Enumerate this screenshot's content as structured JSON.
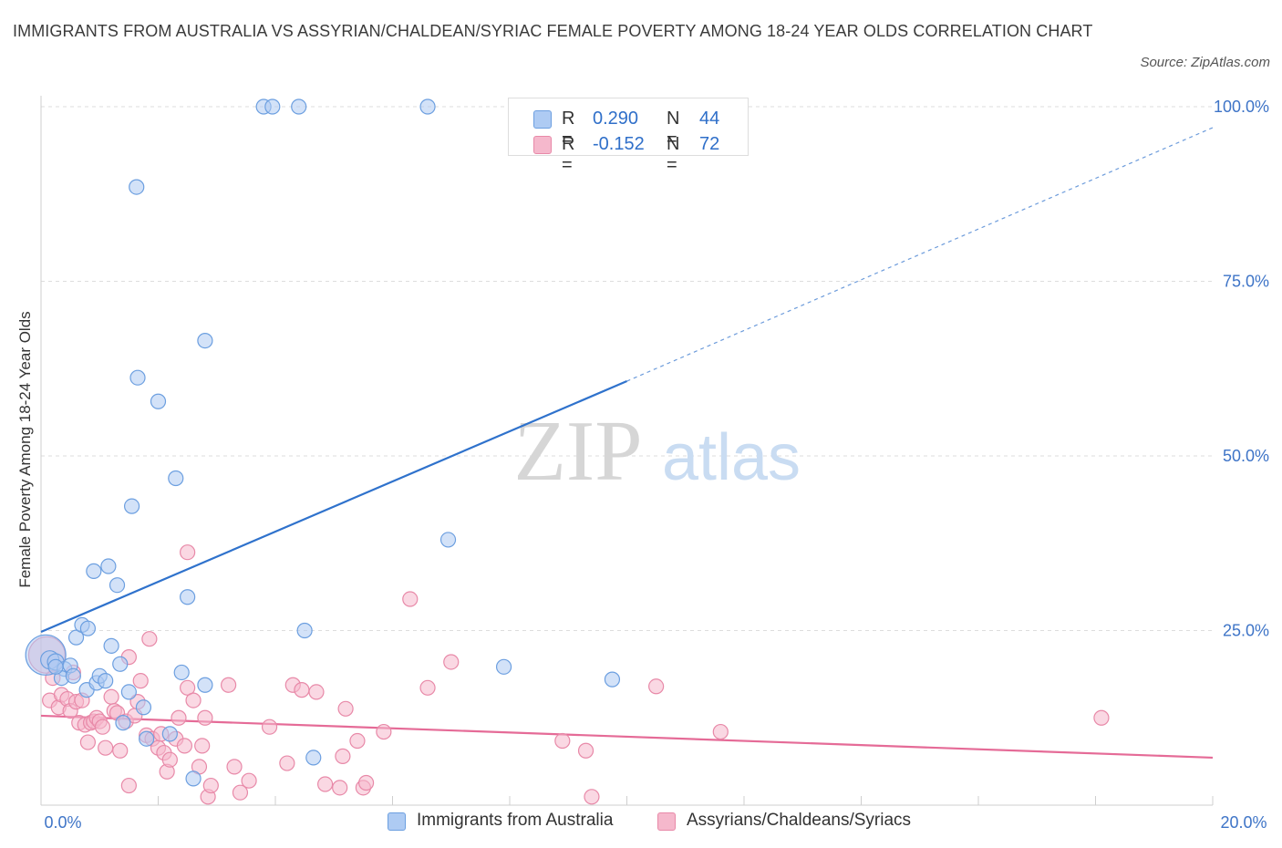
{
  "title": "IMMIGRANTS FROM AUSTRALIA VS ASSYRIAN/CHALDEAN/SYRIAC FEMALE POVERTY AMONG 18-24 YEAR OLDS CORRELATION CHART",
  "source": "Source: ZipAtlas.com",
  "watermark": {
    "zip": "ZIP",
    "atlas": "atlas"
  },
  "colors": {
    "blue_fill": "#aecbf3",
    "blue_stroke": "#6c9fe0",
    "blue_line": "#2f72cc",
    "pink_fill": "#f5b8cc",
    "pink_stroke": "#e889a8",
    "pink_line": "#e56b97",
    "tick_text": "#3e74c7",
    "grid": "#dddddd"
  },
  "stats": {
    "r_label": "R =",
    "n_label": "N =",
    "rows": [
      {
        "series": "Immigrants from Australia",
        "r": "0.290",
        "n": "44"
      },
      {
        "series": "Assyrians/Chaldeans/Syriacs",
        "r": "-0.152",
        "n": "72"
      }
    ]
  },
  "legend": {
    "items": [
      "Immigrants from Australia",
      "Assyrians/Chaldeans/Syriacs"
    ]
  },
  "chart_data": {
    "type": "scatter",
    "title": "IMMIGRANTS FROM AUSTRALIA VS ASSYRIAN/CHALDEAN/SYRIAC FEMALE POVERTY AMONG 18-24 YEAR OLDS CORRELATION CHART",
    "xlabel": "",
    "ylabel": "Female Poverty Among 18-24 Year Olds",
    "xlim": [
      0,
      20
    ],
    "ylim": [
      0,
      100
    ],
    "x_ticks": [
      "0.0%",
      "20.0%"
    ],
    "y_ticks": [
      {
        "value": 25,
        "label": "25.0%"
      },
      {
        "value": 50,
        "label": "50.0%"
      },
      {
        "value": 75,
        "label": "75.0%"
      },
      {
        "value": 100,
        "label": "100.0%"
      }
    ],
    "grid": true,
    "legend_position": "bottom",
    "series": [
      {
        "name": "Immigrants from Australia",
        "r": 0.29,
        "n": 44,
        "trend": {
          "x0": 0,
          "y0": 24.8,
          "x1": 10,
          "y1": 60.7,
          "dashed_to_x": 20,
          "dashed_to_y": 97
        },
        "points": [
          {
            "x": 0.08,
            "y": 21.5,
            "s": 22
          },
          {
            "x": 0.15,
            "y": 20.8,
            "s": 10
          },
          {
            "x": 0.25,
            "y": 20.5,
            "s": 9
          },
          {
            "x": 0.4,
            "y": 19.5,
            "s": 8
          },
          {
            "x": 0.35,
            "y": 18.2,
            "s": 8
          },
          {
            "x": 0.5,
            "y": 20.0,
            "s": 8
          },
          {
            "x": 0.55,
            "y": 18.5,
            "s": 8
          },
          {
            "x": 0.6,
            "y": 24.0,
            "s": 8
          },
          {
            "x": 0.7,
            "y": 25.8,
            "s": 8
          },
          {
            "x": 0.78,
            "y": 16.5,
            "s": 8
          },
          {
            "x": 0.8,
            "y": 25.3,
            "s": 8
          },
          {
            "x": 0.9,
            "y": 33.5,
            "s": 8
          },
          {
            "x": 0.95,
            "y": 17.5,
            "s": 8
          },
          {
            "x": 1.0,
            "y": 18.5,
            "s": 8
          },
          {
            "x": 1.1,
            "y": 17.8,
            "s": 8
          },
          {
            "x": 1.15,
            "y": 34.2,
            "s": 8
          },
          {
            "x": 1.2,
            "y": 22.8,
            "s": 8
          },
          {
            "x": 1.3,
            "y": 31.5,
            "s": 8
          },
          {
            "x": 1.35,
            "y": 20.2,
            "s": 8
          },
          {
            "x": 1.4,
            "y": 11.8,
            "s": 8
          },
          {
            "x": 1.5,
            "y": 16.2,
            "s": 8
          },
          {
            "x": 1.55,
            "y": 42.8,
            "s": 8
          },
          {
            "x": 1.65,
            "y": 61.2,
            "s": 8
          },
          {
            "x": 1.63,
            "y": 88.5,
            "s": 8
          },
          {
            "x": 1.75,
            "y": 14.0,
            "s": 8
          },
          {
            "x": 1.8,
            "y": 9.5,
            "s": 8
          },
          {
            "x": 2.0,
            "y": 57.8,
            "s": 8
          },
          {
            "x": 2.2,
            "y": 10.2,
            "s": 8
          },
          {
            "x": 2.3,
            "y": 46.8,
            "s": 8
          },
          {
            "x": 2.4,
            "y": 19.0,
            "s": 8
          },
          {
            "x": 2.5,
            "y": 29.8,
            "s": 8
          },
          {
            "x": 2.6,
            "y": 3.8,
            "s": 8
          },
          {
            "x": 2.8,
            "y": 17.2,
            "s": 8
          },
          {
            "x": 2.8,
            "y": 66.5,
            "s": 8
          },
          {
            "x": 3.8,
            "y": 100.0,
            "s": 8
          },
          {
            "x": 3.95,
            "y": 100.0,
            "s": 8
          },
          {
            "x": 4.4,
            "y": 100.0,
            "s": 8
          },
          {
            "x": 4.5,
            "y": 25.0,
            "s": 8
          },
          {
            "x": 4.65,
            "y": 6.8,
            "s": 8
          },
          {
            "x": 6.6,
            "y": 100.0,
            "s": 8
          },
          {
            "x": 6.95,
            "y": 38.0,
            "s": 8
          },
          {
            "x": 7.9,
            "y": 19.8,
            "s": 8
          },
          {
            "x": 9.75,
            "y": 18.0,
            "s": 8
          },
          {
            "x": 0.25,
            "y": 19.8,
            "s": 8
          }
        ]
      },
      {
        "name": "Assyrians/Chaldeans/Syriacs",
        "r": -0.152,
        "n": 72,
        "trend": {
          "x0": 0,
          "y0": 12.8,
          "x1": 20,
          "y1": 6.8
        },
        "points": [
          {
            "x": 0.1,
            "y": 21.5,
            "s": 20
          },
          {
            "x": 0.15,
            "y": 15.0,
            "s": 8
          },
          {
            "x": 0.2,
            "y": 18.2,
            "s": 8
          },
          {
            "x": 0.3,
            "y": 14.0,
            "s": 8
          },
          {
            "x": 0.35,
            "y": 15.8,
            "s": 8
          },
          {
            "x": 0.45,
            "y": 15.2,
            "s": 8
          },
          {
            "x": 0.5,
            "y": 13.5,
            "s": 8
          },
          {
            "x": 0.55,
            "y": 19.0,
            "s": 8
          },
          {
            "x": 0.6,
            "y": 14.8,
            "s": 8
          },
          {
            "x": 0.65,
            "y": 11.8,
            "s": 8
          },
          {
            "x": 0.7,
            "y": 15.0,
            "s": 8
          },
          {
            "x": 0.75,
            "y": 11.5,
            "s": 8
          },
          {
            "x": 0.8,
            "y": 9.0,
            "s": 8
          },
          {
            "x": 0.85,
            "y": 11.8,
            "s": 8
          },
          {
            "x": 0.9,
            "y": 12.0,
            "s": 8
          },
          {
            "x": 0.95,
            "y": 12.5,
            "s": 8
          },
          {
            "x": 1.0,
            "y": 12.0,
            "s": 8
          },
          {
            "x": 1.05,
            "y": 11.2,
            "s": 8
          },
          {
            "x": 1.1,
            "y": 8.2,
            "s": 8
          },
          {
            "x": 1.2,
            "y": 15.5,
            "s": 8
          },
          {
            "x": 1.25,
            "y": 13.5,
            "s": 8
          },
          {
            "x": 1.3,
            "y": 13.2,
            "s": 8
          },
          {
            "x": 1.35,
            "y": 7.8,
            "s": 8
          },
          {
            "x": 1.45,
            "y": 12.0,
            "s": 8
          },
          {
            "x": 1.5,
            "y": 21.2,
            "s": 8
          },
          {
            "x": 1.5,
            "y": 2.8,
            "s": 8
          },
          {
            "x": 1.6,
            "y": 12.8,
            "s": 8
          },
          {
            "x": 1.65,
            "y": 14.8,
            "s": 8
          },
          {
            "x": 1.7,
            "y": 17.8,
            "s": 8
          },
          {
            "x": 1.8,
            "y": 10.0,
            "s": 8
          },
          {
            "x": 1.85,
            "y": 23.8,
            "s": 8
          },
          {
            "x": 1.9,
            "y": 9.5,
            "s": 8
          },
          {
            "x": 2.0,
            "y": 8.2,
            "s": 8
          },
          {
            "x": 2.05,
            "y": 10.2,
            "s": 8
          },
          {
            "x": 2.1,
            "y": 7.5,
            "s": 8
          },
          {
            "x": 2.15,
            "y": 4.8,
            "s": 8
          },
          {
            "x": 2.2,
            "y": 6.5,
            "s": 8
          },
          {
            "x": 2.3,
            "y": 9.5,
            "s": 8
          },
          {
            "x": 2.35,
            "y": 12.5,
            "s": 8
          },
          {
            "x": 2.45,
            "y": 8.5,
            "s": 8
          },
          {
            "x": 2.5,
            "y": 16.8,
            "s": 8
          },
          {
            "x": 2.5,
            "y": 36.2,
            "s": 8
          },
          {
            "x": 2.6,
            "y": 15.0,
            "s": 8
          },
          {
            "x": 2.7,
            "y": 5.5,
            "s": 8
          },
          {
            "x": 2.75,
            "y": 8.5,
            "s": 8
          },
          {
            "x": 2.8,
            "y": 12.5,
            "s": 8
          },
          {
            "x": 2.85,
            "y": 1.2,
            "s": 8
          },
          {
            "x": 2.9,
            "y": 2.8,
            "s": 8
          },
          {
            "x": 3.2,
            "y": 17.2,
            "s": 8
          },
          {
            "x": 3.3,
            "y": 5.5,
            "s": 8
          },
          {
            "x": 3.4,
            "y": 1.8,
            "s": 8
          },
          {
            "x": 3.55,
            "y": 3.5,
            "s": 8
          },
          {
            "x": 3.9,
            "y": 11.2,
            "s": 8
          },
          {
            "x": 4.2,
            "y": 6.0,
            "s": 8
          },
          {
            "x": 4.3,
            "y": 17.2,
            "s": 8
          },
          {
            "x": 4.45,
            "y": 16.5,
            "s": 8
          },
          {
            "x": 4.7,
            "y": 16.2,
            "s": 8
          },
          {
            "x": 4.85,
            "y": 3.0,
            "s": 8
          },
          {
            "x": 5.1,
            "y": 2.5,
            "s": 8
          },
          {
            "x": 5.15,
            "y": 7.0,
            "s": 8
          },
          {
            "x": 5.2,
            "y": 13.8,
            "s": 8
          },
          {
            "x": 5.4,
            "y": 9.2,
            "s": 8
          },
          {
            "x": 5.5,
            "y": 2.5,
            "s": 8
          },
          {
            "x": 5.55,
            "y": 3.2,
            "s": 8
          },
          {
            "x": 5.85,
            "y": 10.5,
            "s": 8
          },
          {
            "x": 6.3,
            "y": 29.5,
            "s": 8
          },
          {
            "x": 6.6,
            "y": 16.8,
            "s": 8
          },
          {
            "x": 7.0,
            "y": 20.5,
            "s": 8
          },
          {
            "x": 8.9,
            "y": 9.2,
            "s": 8
          },
          {
            "x": 9.3,
            "y": 7.8,
            "s": 8
          },
          {
            "x": 9.4,
            "y": 1.2,
            "s": 8
          },
          {
            "x": 10.5,
            "y": 17.0,
            "s": 8
          },
          {
            "x": 11.6,
            "y": 10.5,
            "s": 8
          },
          {
            "x": 18.1,
            "y": 12.5,
            "s": 8
          }
        ]
      }
    ]
  }
}
